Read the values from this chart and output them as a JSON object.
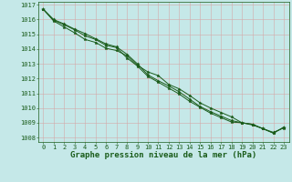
{
  "xlabel": "Graphe pression niveau de la mer (hPa)",
  "ylim": [
    1007.7,
    1017.2
  ],
  "xlim": [
    -0.5,
    23.5
  ],
  "yticks": [
    1008,
    1009,
    1010,
    1011,
    1012,
    1013,
    1014,
    1015,
    1016,
    1017
  ],
  "xticks": [
    0,
    1,
    2,
    3,
    4,
    5,
    6,
    7,
    8,
    9,
    10,
    11,
    12,
    13,
    14,
    15,
    16,
    17,
    18,
    19,
    20,
    21,
    22,
    23
  ],
  "background_color": "#c5e8e8",
  "grid_color": "#d4a8a8",
  "line_color": "#1a5c1a",
  "line1_y": [
    1016.7,
    1015.9,
    1015.5,
    1015.1,
    1014.65,
    1014.45,
    1014.05,
    1013.9,
    1013.55,
    1012.9,
    1012.45,
    1012.2,
    1011.6,
    1011.3,
    1010.85,
    1010.35,
    1010.0,
    1009.7,
    1009.4,
    1009.0,
    1008.85,
    1008.6,
    1008.35,
    1008.65
  ],
  "line2_y": [
    1016.7,
    1015.95,
    1015.65,
    1015.3,
    1014.9,
    1014.65,
    1014.25,
    1014.1,
    1013.4,
    1012.85,
    1012.15,
    1011.75,
    1011.35,
    1010.95,
    1010.45,
    1010.05,
    1009.65,
    1009.35,
    1009.05,
    1009.0,
    1008.9,
    1008.6,
    1008.3,
    1008.7
  ],
  "line3_y": [
    1016.7,
    1016.0,
    1015.7,
    1015.35,
    1015.05,
    1014.7,
    1014.35,
    1014.15,
    1013.65,
    1013.0,
    1012.25,
    1011.85,
    1011.5,
    1011.1,
    1010.6,
    1010.1,
    1009.75,
    1009.45,
    1009.15,
    1009.0,
    1008.9,
    1008.6,
    1008.3,
    1008.7
  ],
  "marker": "*",
  "markersize": 2.5,
  "linewidth": 0.7,
  "tick_fontsize": 5,
  "xlabel_fontsize": 6.5,
  "tick_color": "#1a5c1a",
  "xlabel_color": "#1a5c1a",
  "xlabel_fontweight": "bold"
}
